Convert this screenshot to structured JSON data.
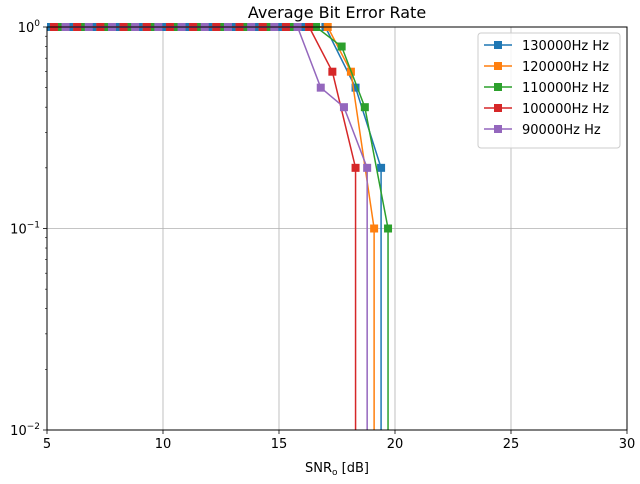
{
  "chart_data": {
    "type": "line",
    "title": "Average Bit Error Rate",
    "xlabel": {
      "base": "SNR",
      "sub": "o",
      "suffix": " [dB]"
    },
    "ylabel": "",
    "xlim": [
      5,
      30
    ],
    "ylim": [
      0.01,
      1
    ],
    "y_scale": "log",
    "grid": true,
    "legend_position": "top-right",
    "x_ticks": [
      {
        "value": 5,
        "label": "5"
      },
      {
        "value": 10,
        "label": "10"
      },
      {
        "value": 15,
        "label": "15"
      },
      {
        "value": 20,
        "label": "20"
      },
      {
        "value": 25,
        "label": "25"
      },
      {
        "value": 30,
        "label": "30"
      }
    ],
    "y_ticks": [
      {
        "value": 1,
        "base": "10",
        "exp": "0"
      },
      {
        "value": 0.1,
        "base": "10",
        "exp": "−1"
      },
      {
        "value": 0.01,
        "base": "10",
        "exp": "−2"
      }
    ],
    "series": [
      {
        "name": "130000Hz Hz",
        "color": "#1f77b4",
        "marker": "square",
        "x": [
          5.0,
          6.0,
          7.0,
          8.0,
          9.0,
          10.0,
          11.0,
          12.0,
          13.0,
          14.0,
          15.0,
          16.0,
          17.0,
          18.3,
          19.4,
          19.4
        ],
        "y": [
          1,
          1,
          1,
          1,
          1,
          1,
          1,
          1,
          1,
          1,
          1,
          1,
          1,
          0.5,
          0.2,
          0.005
        ]
      },
      {
        "name": "120000Hz Hz",
        "color": "#ff7f0e",
        "marker": "square",
        "x": [
          5.3,
          6.3,
          7.3,
          8.3,
          9.3,
          10.3,
          11.3,
          12.3,
          13.3,
          14.3,
          15.3,
          16.3,
          17.1,
          18.1,
          19.1,
          19.1
        ],
        "y": [
          1,
          1,
          1,
          1,
          1,
          1,
          1,
          1,
          1,
          1,
          1,
          1,
          1,
          0.6,
          0.1,
          0.005
        ]
      },
      {
        "name": "110000Hz Hz",
        "color": "#2ca02c",
        "marker": "square",
        "x": [
          5.6,
          6.6,
          7.6,
          8.6,
          9.6,
          10.6,
          11.6,
          12.6,
          13.6,
          14.6,
          15.6,
          16.6,
          17.7,
          18.7,
          19.7,
          19.7
        ],
        "y": [
          1,
          1,
          1,
          1,
          1,
          1,
          1,
          1,
          1,
          1,
          1,
          1,
          0.8,
          0.4,
          0.1,
          0.005
        ]
      },
      {
        "name": "100000Hz Hz",
        "color": "#d62728",
        "marker": "square",
        "x": [
          5.3,
          6.3,
          7.3,
          8.3,
          9.3,
          10.3,
          11.3,
          12.3,
          13.3,
          14.3,
          15.3,
          16.3,
          17.3,
          18.3,
          18.3
        ],
        "y": [
          1,
          1,
          1,
          1,
          1,
          1,
          1,
          1,
          1,
          1,
          1,
          1,
          0.6,
          0.2,
          0.005
        ]
      },
      {
        "name": "90000Hz Hz",
        "color": "#9467bd",
        "marker": "square",
        "x": [
          5.8,
          6.8,
          7.8,
          8.8,
          9.8,
          10.8,
          11.8,
          12.8,
          13.8,
          14.8,
          15.8,
          16.8,
          17.8,
          18.8,
          18.8
        ],
        "y": [
          1,
          1,
          1,
          1,
          1,
          1,
          1,
          1,
          1,
          1,
          1,
          0.5,
          0.4,
          0.2,
          0.005
        ]
      }
    ]
  }
}
